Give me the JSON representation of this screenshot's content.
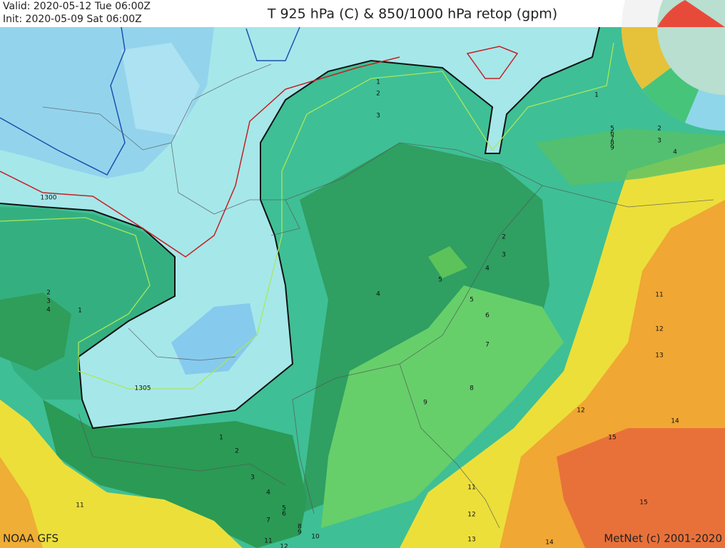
{
  "header": {
    "valid": "Valid: 2020-05-12 Tue  06:00Z",
    "init": "Init:   2020-05-09 Sat  06:00Z",
    "title": "T 925 hPa (C) & 850/1000 hPa retop (gpm)"
  },
  "footer": {
    "source": "NOAA GFS",
    "credit": "MetNet (c) 2001-2020"
  },
  "map": {
    "height_labels": [
      "1300",
      "1305"
    ],
    "contour_labels": [
      "1",
      "2",
      "3",
      "1",
      "5",
      "6",
      "7",
      "8",
      "9",
      "2",
      "3",
      "4",
      "2",
      "3",
      "4",
      "5",
      "4",
      "5",
      "6",
      "7",
      "8",
      "9",
      "11",
      "12",
      "13",
      "12",
      "14",
      "15",
      "15",
      "11",
      "12",
      "13",
      "14",
      "1",
      "2",
      "3",
      "4",
      "5",
      "6",
      "7",
      "8",
      "9",
      "10",
      "11",
      "12",
      "11",
      "2",
      "3",
      "4",
      "1"
    ]
  }
}
